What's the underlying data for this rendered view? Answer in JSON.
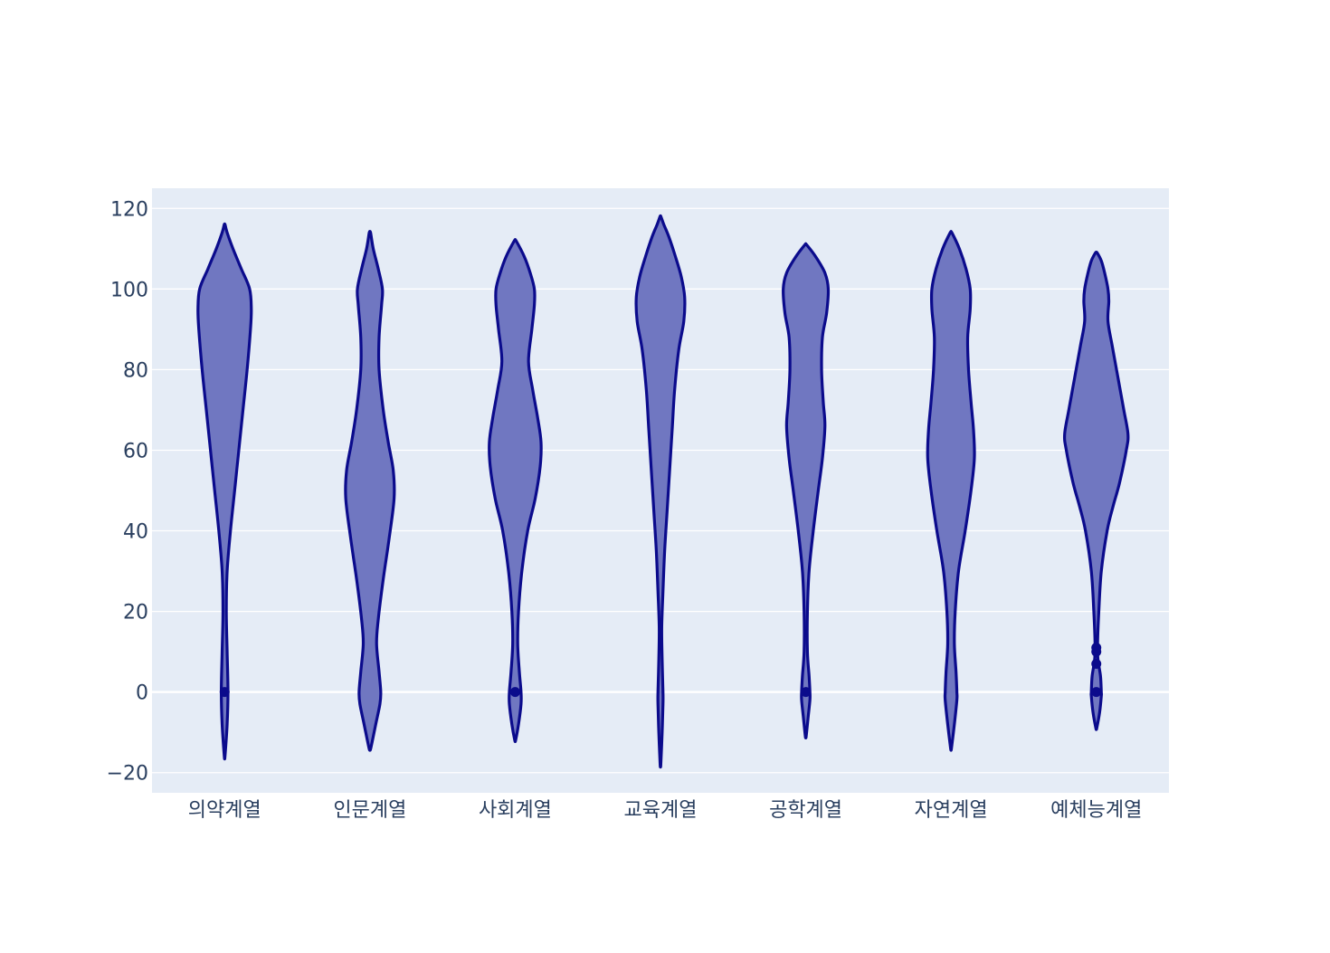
{
  "chart_data": {
    "type": "violin",
    "title": "",
    "xlabel": "",
    "ylabel": "",
    "ylim": [
      -25,
      125
    ],
    "yticks": [
      -20,
      0,
      20,
      40,
      60,
      80,
      100,
      120
    ],
    "ytick_labels": [
      "−20",
      "0",
      "20",
      "40",
      "60",
      "80",
      "100",
      "120"
    ],
    "grid": true,
    "legend": "none",
    "colors": {
      "fill": "#7077c1",
      "outline": "#0b0b8c",
      "plot_bg": "#e5ecf6",
      "grid": "#ffffff",
      "tick_text": "#2a3f5f"
    },
    "categories": [
      "의약계열",
      "인문계열",
      "사회계열",
      "교육계열",
      "공학계열",
      "자연계열",
      "예체능계열"
    ],
    "series": [
      {
        "category": "의약계열",
        "ymin": -16,
        "ymax": 116,
        "density": [
          [
            -16,
            0.4
          ],
          [
            -8,
            3
          ],
          [
            0,
            4
          ],
          [
            10,
            3
          ],
          [
            20,
            2
          ],
          [
            30,
            3
          ],
          [
            40,
            7
          ],
          [
            50,
            12
          ],
          [
            60,
            17
          ],
          [
            70,
            22
          ],
          [
            80,
            27
          ],
          [
            90,
            31
          ],
          [
            95,
            32
          ],
          [
            100,
            30
          ],
          [
            105,
            20
          ],
          [
            110,
            10
          ],
          [
            114,
            3
          ],
          [
            116,
            0.5
          ]
        ],
        "outliers": [
          0
        ]
      },
      {
        "category": "인문계열",
        "ymin": -14,
        "ymax": 114,
        "density": [
          [
            -14,
            1
          ],
          [
            -8,
            7
          ],
          [
            -3,
            12
          ],
          [
            0,
            13
          ],
          [
            5,
            11
          ],
          [
            12,
            8
          ],
          [
            18,
            10
          ],
          [
            28,
            16
          ],
          [
            38,
            23
          ],
          [
            48,
            29
          ],
          [
            55,
            28
          ],
          [
            62,
            22
          ],
          [
            70,
            16
          ],
          [
            80,
            11
          ],
          [
            88,
            11
          ],
          [
            96,
            14
          ],
          [
            100,
            15
          ],
          [
            105,
            10
          ],
          [
            110,
            4
          ],
          [
            114,
            0.8
          ]
        ],
        "outliers": []
      },
      {
        "category": "사회계열",
        "ymin": -12,
        "ymax": 112,
        "density": [
          [
            -12,
            0.5
          ],
          [
            -8,
            4
          ],
          [
            -3,
            7
          ],
          [
            0,
            7
          ],
          [
            5,
            5
          ],
          [
            12,
            3
          ],
          [
            20,
            4
          ],
          [
            30,
            8
          ],
          [
            40,
            15
          ],
          [
            48,
            24
          ],
          [
            56,
            30
          ],
          [
            62,
            31
          ],
          [
            68,
            27
          ],
          [
            75,
            21
          ],
          [
            82,
            16
          ],
          [
            90,
            20
          ],
          [
            96,
            23
          ],
          [
            100,
            23
          ],
          [
            104,
            18
          ],
          [
            108,
            11
          ],
          [
            112,
            1
          ]
        ],
        "outliers": [
          0
        ]
      },
      {
        "category": "교육계열",
        "ymin": -18,
        "ymax": 118,
        "density": [
          [
            -18,
            0.4
          ],
          [
            -10,
            2
          ],
          [
            -3,
            3
          ],
          [
            0,
            3
          ],
          [
            8,
            2
          ],
          [
            16,
            1.5
          ],
          [
            25,
            3
          ],
          [
            35,
            5
          ],
          [
            45,
            8
          ],
          [
            55,
            11
          ],
          [
            65,
            14
          ],
          [
            75,
            17
          ],
          [
            85,
            22
          ],
          [
            92,
            28
          ],
          [
            98,
            29
          ],
          [
            103,
            25
          ],
          [
            108,
            18
          ],
          [
            113,
            10
          ],
          [
            116,
            4
          ],
          [
            118,
            0.5
          ]
        ],
        "outliers": []
      },
      {
        "category": "공학계열",
        "ymin": -11,
        "ymax": 111,
        "density": [
          [
            -11,
            0.5
          ],
          [
            -6,
            3
          ],
          [
            -2,
            5
          ],
          [
            0,
            5
          ],
          [
            4,
            4
          ],
          [
            10,
            2
          ],
          [
            20,
            2
          ],
          [
            30,
            4
          ],
          [
            40,
            9
          ],
          [
            50,
            15
          ],
          [
            58,
            20
          ],
          [
            66,
            23
          ],
          [
            72,
            21
          ],
          [
            80,
            19
          ],
          [
            88,
            20
          ],
          [
            94,
            25
          ],
          [
            100,
            27
          ],
          [
            104,
            23
          ],
          [
            108,
            12
          ],
          [
            111,
            1
          ]
        ],
        "outliers": [
          0
        ]
      },
      {
        "category": "자연계열",
        "ymin": -14,
        "ymax": 114,
        "density": [
          [
            -14,
            0.5
          ],
          [
            -8,
            4
          ],
          [
            -2,
            7
          ],
          [
            0,
            7
          ],
          [
            5,
            6
          ],
          [
            12,
            4
          ],
          [
            20,
            5
          ],
          [
            30,
            9
          ],
          [
            40,
            17
          ],
          [
            50,
            24
          ],
          [
            58,
            28
          ],
          [
            65,
            27
          ],
          [
            72,
            24
          ],
          [
            80,
            21
          ],
          [
            88,
            20
          ],
          [
            95,
            23
          ],
          [
            100,
            23
          ],
          [
            105,
            18
          ],
          [
            110,
            10
          ],
          [
            114,
            1
          ]
        ],
        "outliers": []
      },
      {
        "category": "예체능계열",
        "ymin": -9,
        "ymax": 109,
        "density": [
          [
            -9,
            0.5
          ],
          [
            -5,
            4
          ],
          [
            -1,
            6
          ],
          [
            0,
            6
          ],
          [
            4,
            5
          ],
          [
            8,
            2
          ],
          [
            12,
            1.5
          ],
          [
            20,
            3
          ],
          [
            30,
            6
          ],
          [
            40,
            13
          ],
          [
            46,
            20
          ],
          [
            52,
            28
          ],
          [
            60,
            36
          ],
          [
            64,
            38
          ],
          [
            70,
            33
          ],
          [
            78,
            26
          ],
          [
            86,
            19
          ],
          [
            92,
            14
          ],
          [
            97,
            15
          ],
          [
            100,
            14
          ],
          [
            104,
            10
          ],
          [
            107,
            6
          ],
          [
            109,
            1
          ]
        ],
        "outliers": [
          0,
          7,
          10,
          11
        ]
      }
    ]
  }
}
